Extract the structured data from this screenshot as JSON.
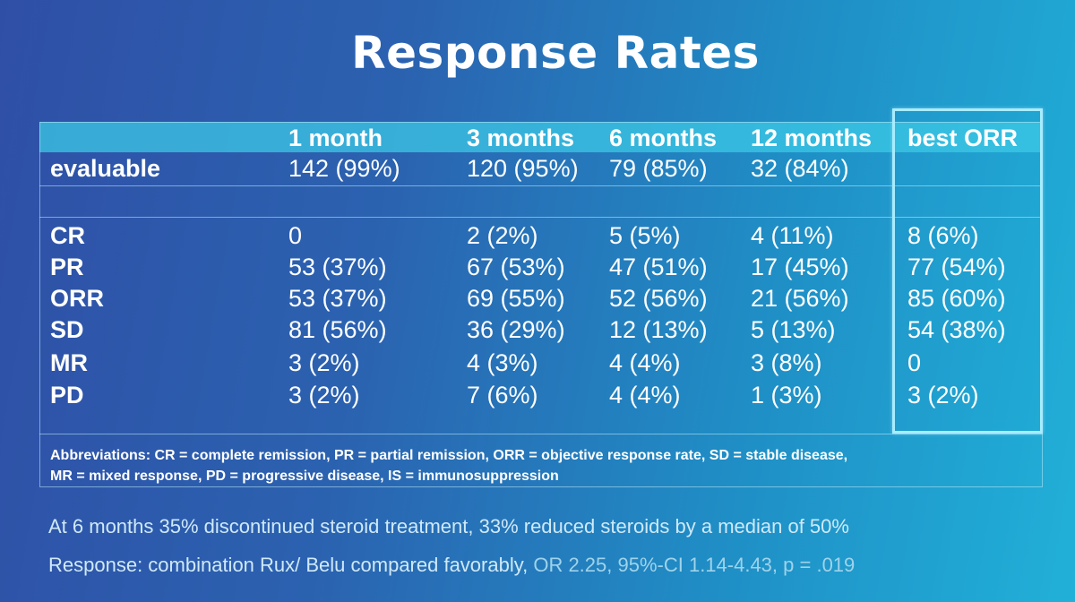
{
  "title": "Response Rates",
  "columns": [
    "",
    "1 month",
    "3 months",
    "6 months",
    "12 months",
    "best ORR"
  ],
  "rows": [
    {
      "label": "evaluable",
      "values": [
        "142 (99%)",
        "120 (95%)",
        "79 (85%)",
        "32 (84%)",
        ""
      ]
    },
    {
      "label": "CR",
      "values": [
        "0",
        "2 (2%)",
        "5 (5%)",
        "4 (11%)",
        "8 (6%)"
      ]
    },
    {
      "label": "PR",
      "values": [
        "53 (37%)",
        "67 (53%)",
        "47 (51%)",
        "17 (45%)",
        "77 (54%)"
      ]
    },
    {
      "label": "ORR",
      "values": [
        "53 (37%)",
        "69 (55%)",
        "52 (56%)",
        "21 (56%)",
        "85 (60%)"
      ]
    },
    {
      "label": "SD",
      "values": [
        "81 (56%)",
        "36 (29%)",
        "12 (13%)",
        "5 (13%)",
        "54 (38%)"
      ]
    },
    {
      "label": "MR",
      "values": [
        "3 (2%)",
        "4 (3%)",
        "4 (4%)",
        "3 (8%)",
        "0"
      ]
    },
    {
      "label": "PD",
      "values": [
        "3 (2%)",
        "7 (6%)",
        "4 (4%)",
        "1 (3%)",
        "3 (2%)"
      ]
    }
  ],
  "abbreviations": {
    "line1": "Abbreviations: CR = complete remission, PR = partial remission, ORR = objective response rate, SD = stable disease,",
    "line2": "MR = mixed response, PD = progressive disease, IS = immunosuppression"
  },
  "notes": {
    "line1": "At 6 months 35% discontinued steroid treatment, 33% reduced steroids by a median of 50%",
    "line2_main": "Response: combination Rux/ Belu compared favorably,",
    "line2_stats": " OR 2.25, 95%-CI 1.14-4.43, p = .019"
  },
  "colors": {
    "header_band": "#3cc8e6",
    "highlight_border": "#a9ecff"
  }
}
